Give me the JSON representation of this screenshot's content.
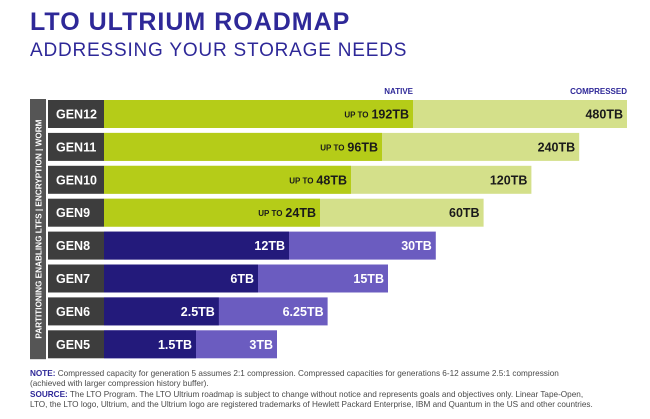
{
  "title": "LTO ULTRIUM ROADMAP",
  "subtitle": "ADDRESSING YOUR STORAGE NEEDS",
  "colors": {
    "title": "#2e2898",
    "native_green": "#b5cc18",
    "compressed_green": "#d4e08a",
    "native_purple": "#231a7b",
    "compressed_purple": "#6b5cc0",
    "label_bg": "#3d3d3d",
    "label_side": "#555555"
  },
  "chart_data": {
    "type": "bar",
    "orientation": "horizontal",
    "stacked": "overlay",
    "title": "LTO ULTRIUM ROADMAP",
    "subtitle": "ADDRESSING YOUR STORAGE NEEDS",
    "header_native": "NATIVE",
    "header_compressed": "COMPRESSED",
    "side_label": "PARTITIONING ENABLING LTFS  |  ENCRYPTION  |  WORM",
    "categories": [
      "GEN12",
      "GEN11",
      "GEN10",
      "GEN9",
      "GEN8",
      "GEN7",
      "GEN6",
      "GEN5"
    ],
    "series": [
      {
        "name": "NATIVE",
        "values": [
          192,
          96,
          48,
          24,
          12,
          6,
          2.5,
          1.5
        ]
      },
      {
        "name": "COMPRESSED",
        "values": [
          480,
          240,
          120,
          60,
          30,
          15,
          6.25,
          3
        ]
      }
    ],
    "native_labels": [
      "192TB",
      "96TB",
      "48TB",
      "24TB",
      "12TB",
      "6TB",
      "2.5TB",
      "1.5TB"
    ],
    "native_prefix": [
      "UP TO",
      "UP TO",
      "UP TO",
      "UP TO",
      "",
      "",
      "",
      ""
    ],
    "compressed_labels": [
      "480TB",
      "240TB",
      "120TB",
      "60TB",
      "30TB",
      "15TB",
      "6.25TB",
      "3TB"
    ],
    "unit": "TB"
  },
  "notes": {
    "note_label": "NOTE:",
    "note_text": " Compressed capacity for generation 5 assumes 2:1 compression. Compressed capacities for generations 6-12 assume 2.5:1 compression",
    "note_text2": "(achieved with larger compression history buffer).",
    "source_label": "SOURCE:",
    "source_text": " The LTO Program. The LTO Ultrium roadmap is subject to change without notice and represents goals and objectives only. Linear Tape-Open,",
    "source_text2": "LTO, the LTO logo, Ultrium, and the Ultrium logo are registered trademarks of Hewlett Packard Enterprise, IBM and Quantum in the US and other countries."
  }
}
